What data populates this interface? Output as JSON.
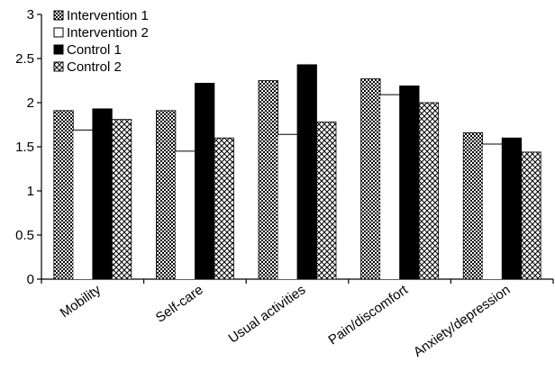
{
  "chart_data": {
    "type": "bar",
    "title": "",
    "xlabel": "",
    "ylabel": "",
    "ylim": [
      0,
      3
    ],
    "yticks": [
      "0",
      "0.5",
      "1",
      "1.5",
      "2",
      "2.5",
      "3"
    ],
    "grid": false,
    "legend_position": "top-left",
    "categories": [
      "Mobility",
      "Self-care",
      "Usual activities",
      "Pain/discomfort",
      "Anxiety/depression"
    ],
    "series": [
      {
        "name": "Intervention 1",
        "pattern": "checker",
        "values": [
          1.91,
          1.91,
          2.25,
          2.27,
          1.66
        ]
      },
      {
        "name": "Intervention 2",
        "pattern": "white",
        "values": [
          1.69,
          1.45,
          1.64,
          2.09,
          1.53
        ]
      },
      {
        "name": "Control 1",
        "pattern": "black",
        "values": [
          1.93,
          2.22,
          2.43,
          2.19,
          1.6
        ]
      },
      {
        "name": "Control 2",
        "pattern": "crosshatch",
        "values": [
          1.81,
          1.6,
          1.78,
          2.0,
          1.44
        ]
      }
    ]
  }
}
